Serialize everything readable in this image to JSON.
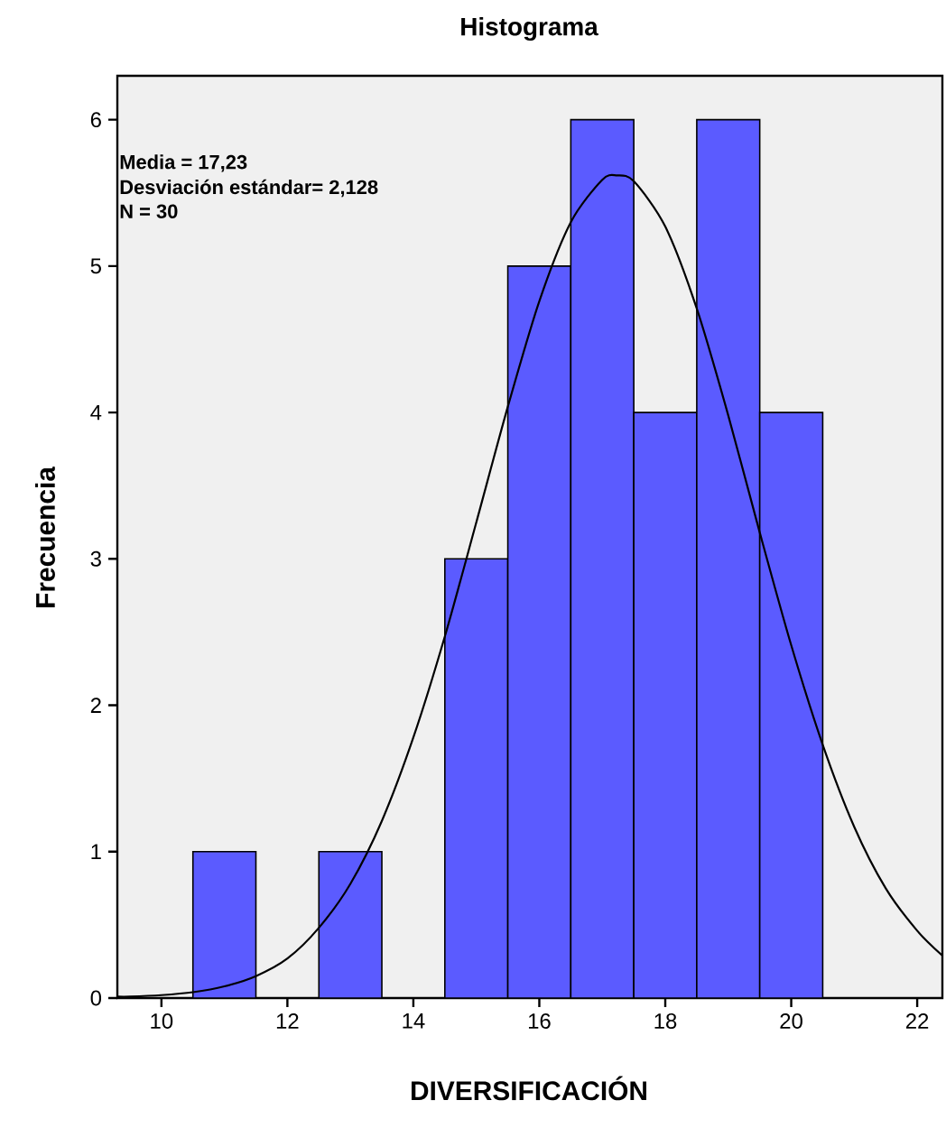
{
  "chart_data": {
    "type": "histogram",
    "title": "Histograma",
    "xlabel": "DIVERSIFICACIÓN",
    "ylabel": "Frecuencia",
    "bins": [
      10.5,
      11.5,
      12.5,
      13.5,
      14.5,
      15.5,
      16.5,
      17.5,
      18.5,
      19.5,
      20.5
    ],
    "values": [
      1,
      0,
      1,
      0,
      3,
      5,
      6,
      4,
      6,
      4
    ],
    "color": "#5b5bff",
    "series": [
      {
        "type": "line",
        "color": "#000000",
        "x": [
          9.3,
          9.5,
          10,
          10.5,
          11,
          11.5,
          12,
          12.5,
          13,
          13.5,
          14,
          14.5,
          15,
          15.5,
          16,
          16.5,
          17,
          17.23,
          17.5,
          18,
          18.5,
          19,
          19.5,
          20,
          20.5,
          21,
          21.5,
          22,
          22.4
        ],
        "values": [
          0.01,
          0.01,
          0.02,
          0.04,
          0.08,
          0.15,
          0.27,
          0.48,
          0.78,
          1.21,
          1.78,
          2.47,
          3.25,
          4.04,
          4.76,
          5.3,
          5.59,
          5.62,
          5.58,
          5.27,
          4.71,
          3.98,
          3.18,
          2.41,
          1.73,
          1.17,
          0.75,
          0.46,
          0.29
        ]
      }
    ],
    "marker": "none",
    "line_style": "solid",
    "xlim": [
      9.3,
      22.4
    ],
    "ylim": [
      0,
      6.3
    ],
    "xticks": [
      10,
      12,
      14,
      16,
      18,
      20,
      22
    ],
    "yticks": [
      0,
      1,
      2,
      3,
      4,
      5,
      6
    ],
    "annotations": [
      "Media = 17,23",
      "Desviación estándar= 2,128",
      "N = 30"
    ]
  }
}
